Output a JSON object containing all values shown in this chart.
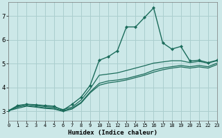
{
  "xlabel": "Humidex (Indice chaleur)",
  "xlim": [
    0,
    23
  ],
  "ylim": [
    2.6,
    7.6
  ],
  "xtick_vals": [
    0,
    1,
    2,
    3,
    4,
    5,
    6,
    7,
    8,
    9,
    10,
    11,
    12,
    13,
    14,
    15,
    16,
    17,
    18,
    19,
    20,
    21,
    22,
    23
  ],
  "ytick_vals": [
    3,
    4,
    5,
    6,
    7
  ],
  "bg_color": "#cce8e8",
  "grid_color": "#aacece",
  "line_color": "#1a6b5a",
  "lines": [
    {
      "x": [
        0,
        1,
        2,
        3,
        4,
        5,
        6,
        7,
        8,
        9,
        10,
        11,
        12,
        13,
        14,
        15,
        16,
        17,
        18,
        19,
        20,
        21,
        22,
        23
      ],
      "y": [
        3.03,
        3.25,
        3.3,
        3.28,
        3.25,
        3.22,
        3.05,
        3.3,
        3.6,
        4.1,
        5.15,
        5.3,
        5.55,
        6.55,
        6.55,
        6.95,
        7.35,
        5.88,
        5.62,
        5.73,
        5.12,
        5.15,
        5.05,
        5.15
      ],
      "marker": true,
      "lw": 1.0
    },
    {
      "x": [
        0,
        1,
        2,
        3,
        4,
        5,
        6,
        7,
        8,
        9,
        10,
        11,
        12,
        13,
        14,
        15,
        16,
        17,
        18,
        19,
        20,
        21,
        22,
        23
      ],
      "y": [
        3.03,
        3.22,
        3.3,
        3.25,
        3.2,
        3.18,
        3.08,
        3.18,
        3.48,
        3.95,
        4.52,
        4.57,
        4.62,
        4.72,
        4.82,
        4.92,
        5.03,
        5.08,
        5.13,
        5.13,
        5.05,
        5.1,
        5.03,
        5.13
      ],
      "marker": false,
      "lw": 0.9
    },
    {
      "x": [
        0,
        1,
        2,
        3,
        4,
        5,
        6,
        7,
        8,
        9,
        10,
        11,
        12,
        13,
        14,
        15,
        16,
        17,
        18,
        19,
        20,
        21,
        22,
        23
      ],
      "y": [
        3.03,
        3.18,
        3.25,
        3.2,
        3.15,
        3.13,
        3.03,
        3.13,
        3.38,
        3.82,
        4.18,
        4.28,
        4.32,
        4.38,
        4.48,
        4.58,
        4.73,
        4.82,
        4.88,
        4.93,
        4.88,
        4.93,
        4.88,
        5.03
      ],
      "marker": false,
      "lw": 0.9
    },
    {
      "x": [
        0,
        1,
        2,
        3,
        4,
        5,
        6,
        7,
        8,
        9,
        10,
        11,
        12,
        13,
        14,
        15,
        16,
        17,
        18,
        19,
        20,
        21,
        22,
        23
      ],
      "y": [
        3.03,
        3.13,
        3.22,
        3.18,
        3.13,
        3.1,
        3.0,
        3.1,
        3.35,
        3.78,
        4.1,
        4.2,
        4.25,
        4.32,
        4.42,
        4.52,
        4.65,
        4.75,
        4.82,
        4.87,
        4.82,
        4.87,
        4.82,
        4.97
      ],
      "marker": false,
      "lw": 0.9
    }
  ]
}
